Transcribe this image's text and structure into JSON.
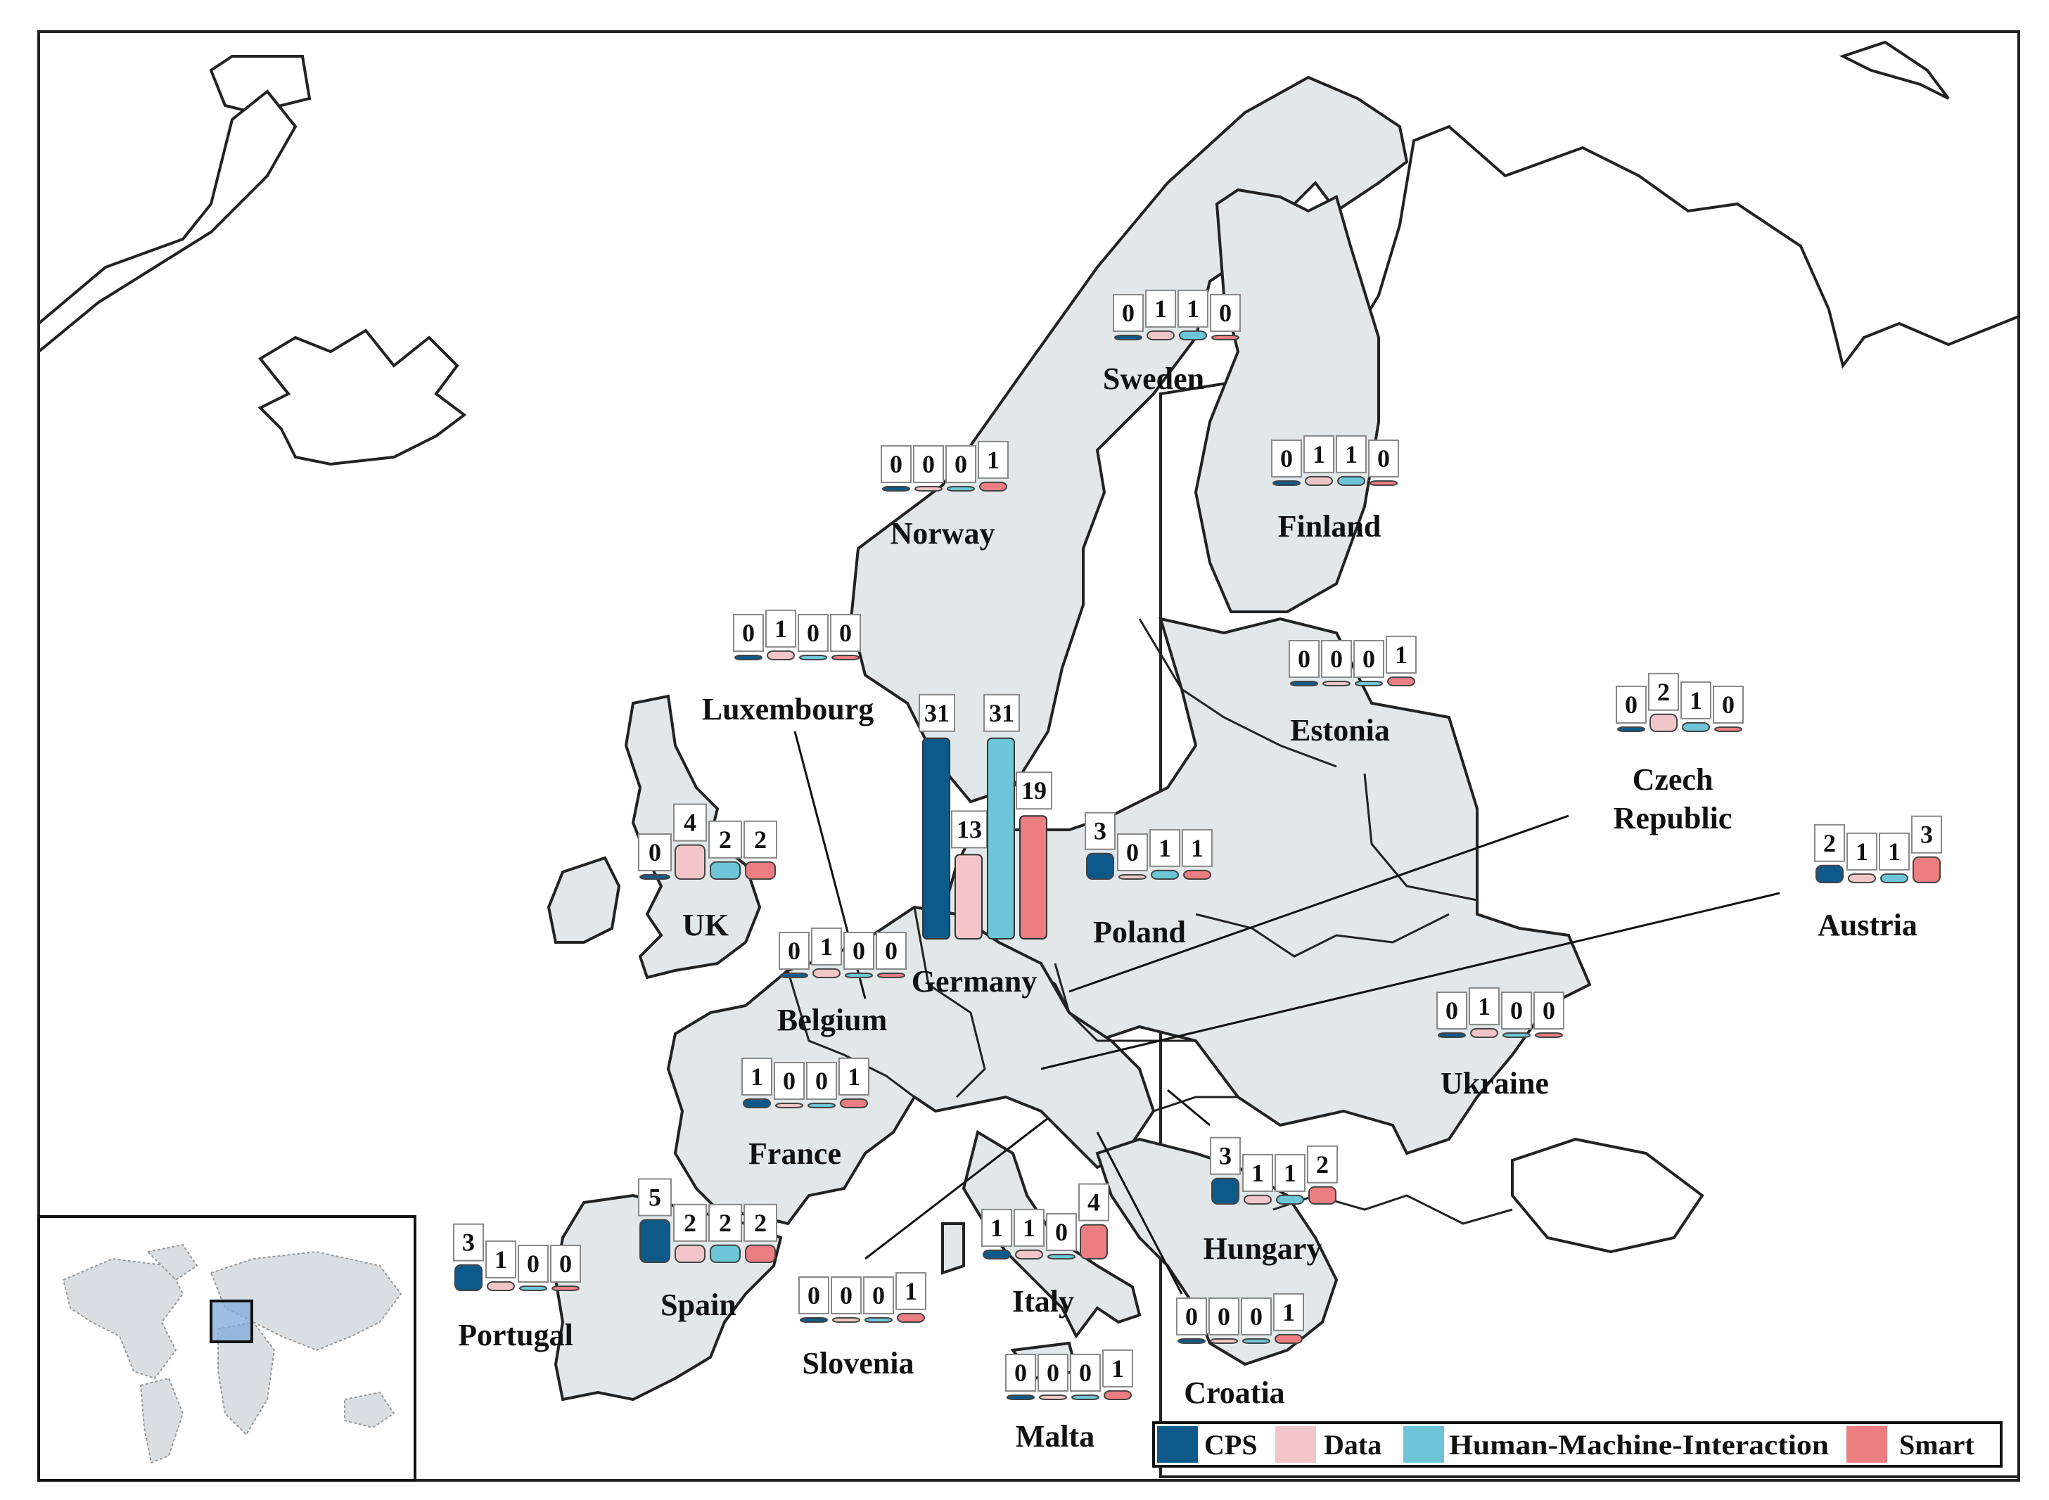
{
  "series": [
    {
      "name": "CPS",
      "color": "#0d5a8a"
    },
    {
      "name": "Data",
      "color": "#f2c6c8"
    },
    {
      "name": "Human-Machine-Interaction",
      "color": "#6cc6d8"
    },
    {
      "name": "Smart",
      "color": "#ec7d80"
    }
  ],
  "chart_data": {
    "type": "bar",
    "series_order": [
      "CPS",
      "Data",
      "Human-Machine-Interaction",
      "Smart"
    ],
    "countries": [
      {
        "name": "Sweden",
        "values": [
          0,
          1,
          1,
          0
        ]
      },
      {
        "name": "Norway",
        "values": [
          0,
          0,
          0,
          1
        ]
      },
      {
        "name": "Finland",
        "values": [
          0,
          1,
          1,
          0
        ]
      },
      {
        "name": "Estonia",
        "values": [
          0,
          0,
          0,
          1
        ]
      },
      {
        "name": "Luxembourg",
        "values": [
          0,
          1,
          0,
          0
        ]
      },
      {
        "name": "Germany",
        "values": [
          31,
          13,
          31,
          19
        ]
      },
      {
        "name": "Czech Republic",
        "values": [
          0,
          2,
          1,
          0
        ]
      },
      {
        "name": "UK",
        "values": [
          0,
          4,
          2,
          2
        ]
      },
      {
        "name": "Poland",
        "values": [
          3,
          0,
          1,
          1
        ]
      },
      {
        "name": "Austria",
        "values": [
          2,
          1,
          1,
          3
        ]
      },
      {
        "name": "Belgium",
        "values": [
          0,
          1,
          0,
          0
        ]
      },
      {
        "name": "Ukraine",
        "values": [
          0,
          1,
          0,
          0
        ]
      },
      {
        "name": "France",
        "values": [
          1,
          0,
          0,
          1
        ]
      },
      {
        "name": "Hungary",
        "values": [
          3,
          1,
          1,
          2
        ]
      },
      {
        "name": "Spain",
        "values": [
          5,
          2,
          2,
          2
        ]
      },
      {
        "name": "Portugal",
        "values": [
          3,
          1,
          0,
          0
        ]
      },
      {
        "name": "Italy",
        "values": [
          1,
          1,
          0,
          4
        ]
      },
      {
        "name": "Slovenia",
        "values": [
          0,
          0,
          0,
          1
        ]
      },
      {
        "name": "Croatia",
        "values": [
          0,
          0,
          0,
          1
        ]
      },
      {
        "name": "Malta",
        "values": [
          0,
          0,
          0,
          1
        ]
      }
    ]
  }
}
